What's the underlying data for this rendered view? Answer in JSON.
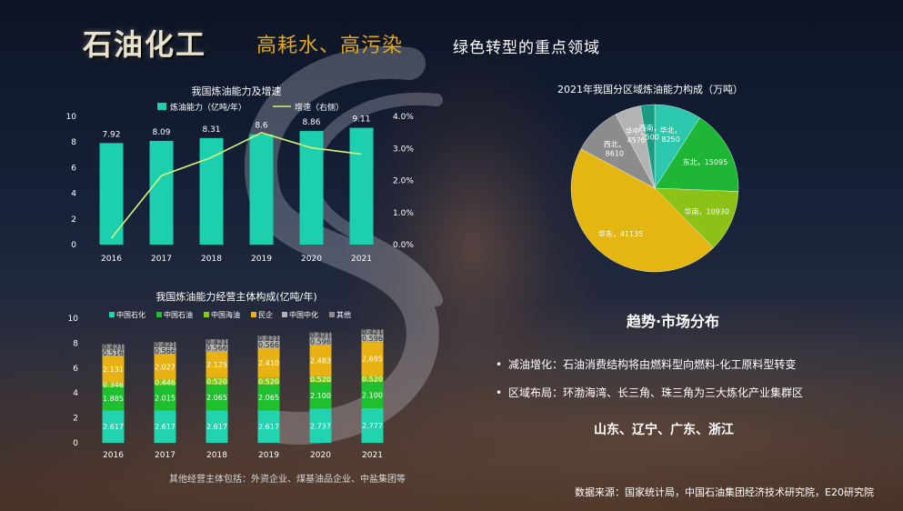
{
  "slide": {
    "title": "石油化工",
    "subtitle_accent": "高耗水、高污染",
    "subtitle": "绿色转型的重点领域"
  },
  "charts_text": {
    "chart1_title": "我国炼油能力及增速",
    "chart2_title": "我国炼油能力经营主体构成(亿吨/年)",
    "chart3_title": "2021年我国分区域炼油能力构成（万吨）"
  },
  "trends": {
    "heading": "趋势·市场分布",
    "bullets": [
      "减油增化：石油消费结构将由燃料型向燃料-化工原料型转变",
      "区域布局：环渤海湾、长三角、珠三角为三大炼化产业集群区"
    ],
    "provinces": "山东、辽宁、广东、浙江"
  },
  "footnote": "其他经营主体包括：外资企业、煤基油品企业、中盐集团等",
  "source": "数据来源：国家统计局，中国石油集团经济技术研究院，E20研究院",
  "colors": {
    "bar_teal": "#1ccfae",
    "growth_line": "#d8f07a",
    "title_gold": "#e0a81c",
    "sinopec": "#22d3b0",
    "petrochina": "#1fbf30",
    "cnooc": "#86cc12",
    "private": "#e8b214",
    "sinochem": "#b3b3b3",
    "other": "#8c8c8c"
  },
  "chart_data": [
    {
      "type": "bar",
      "title": "我国炼油能力及增速",
      "categories": [
        "2016",
        "2017",
        "2018",
        "2019",
        "2020",
        "2021"
      ],
      "series": [
        {
          "name": "炼油能力（亿吨/年）",
          "type": "bar",
          "axis": "left",
          "values": [
            7.92,
            8.09,
            8.31,
            8.6,
            8.86,
            9.11
          ],
          "labels": [
            "7.92",
            "8.09",
            "8.31",
            "8.6",
            "8.86",
            "9.11"
          ]
        },
        {
          "name": "增速（右侧）",
          "type": "line",
          "axis": "right",
          "values": [
            0.002,
            0.0215,
            0.0272,
            0.0349,
            0.0302,
            0.0282
          ]
        }
      ],
      "y_left": {
        "min": 0,
        "max": 10,
        "ticks": [
          "0",
          "2",
          "4",
          "6",
          "8",
          "10"
        ]
      },
      "y_right": {
        "min": 0,
        "max": 0.04,
        "ticks": [
          "0.0%",
          "1.0%",
          "2.0%",
          "3.0%",
          "4.0%"
        ]
      },
      "legend": "top-center",
      "grid": false
    },
    {
      "type": "bar",
      "stacked": true,
      "title": "我国炼油能力经营主体构成(亿吨/年)",
      "categories": [
        "2016",
        "2017",
        "2018",
        "2019",
        "2020",
        "2021"
      ],
      "series": [
        {
          "name": "中国石化",
          "values": [
            2.617,
            2.617,
            2.617,
            2.617,
            2.737,
            2.777
          ],
          "labels": [
            "2.617",
            "2.617",
            "2.617",
            "2.617",
            "2.737",
            "2.777"
          ]
        },
        {
          "name": "中国石油",
          "values": [
            1.885,
            2.015,
            2.065,
            2.065,
            2.1,
            2.1
          ],
          "labels": [
            "1.885",
            "2.015",
            "2.065",
            "2.065",
            "2.100",
            "2.100"
          ]
        },
        {
          "name": "中国海油",
          "values": [
            0.346,
            0.446,
            0.52,
            0.52,
            0.52,
            0.52
          ],
          "labels": [
            "0.346",
            "0.446",
            "0.520",
            "0.520",
            "0.520",
            "0.520"
          ]
        },
        {
          "name": "民企",
          "values": [
            2.131,
            2.027,
            2.125,
            2.41,
            2.483,
            2.695
          ],
          "labels": [
            "2.131",
            "2.027",
            "2.125",
            "2.410",
            "2.483",
            "2.695"
          ]
        },
        {
          "name": "中国中化",
          "values": [
            0.516,
            0.566,
            0.566,
            0.566,
            0.596,
            0.596
          ],
          "labels": [
            "0.516",
            "0.566",
            "0.566",
            "0.566",
            "0.596",
            "0.596"
          ]
        },
        {
          "name": "其他",
          "values": [
            0.421,
            0.421,
            0.421,
            0.421,
            0.421,
            0.421
          ],
          "labels": [
            "0.421",
            "0.421",
            "0.421",
            "0.421",
            "0.421",
            "0.421"
          ]
        }
      ],
      "y": {
        "min": 0,
        "max": 10,
        "ticks": [
          "0",
          "2",
          "4",
          "6",
          "8",
          "10"
        ]
      },
      "legend": "top",
      "grid": false
    },
    {
      "type": "pie",
      "title": "2021年我国分区域炼油能力构成（万吨）",
      "slices": [
        {
          "name": "华北",
          "value": 8250,
          "label": "华北，8250",
          "color": "#2cc8ad"
        },
        {
          "name": "东北",
          "value": 15095,
          "label": "东北，15095",
          "color": "#1fb535"
        },
        {
          "name": "华南",
          "value": 10930,
          "label": "华南，10930",
          "color": "#8cc117"
        },
        {
          "name": "华东",
          "value": 41135,
          "label": "华东，41135",
          "color": "#e4b612"
        },
        {
          "name": "西北",
          "value": 8610,
          "label": "西北，8610",
          "color": "#8c8c8c"
        },
        {
          "name": "华中",
          "value": 4570,
          "label": "华中，4570",
          "color": "#b3b3b3"
        },
        {
          "name": "西南",
          "value": 2500,
          "label": "西南，2500",
          "color": "#1a9a82"
        }
      ],
      "legend": "none"
    }
  ]
}
